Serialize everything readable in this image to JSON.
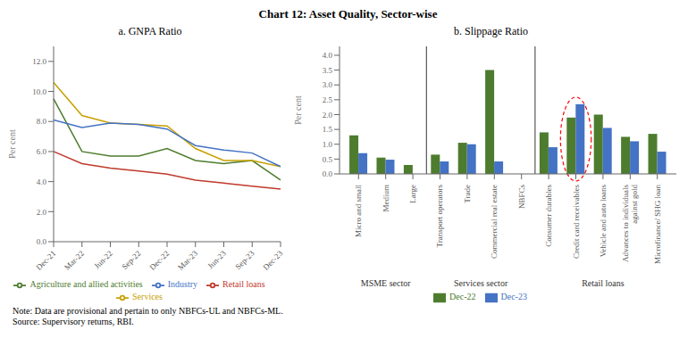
{
  "title": "Chart 12: Asset Quality, Sector-wise",
  "annotations": [
    "Note: Data are provisional and pertain to only NBFCs-UL and NBFCs-ML.",
    "Source: Supervisory returns, RBI."
  ],
  "chart_data": [
    {
      "type": "line",
      "title": "a. GNPA Ratio",
      "categories": [
        "Dec-21",
        "Mar-22",
        "Jun-22",
        "Sep-22",
        "Dec-22",
        "Mar-23",
        "Jun-23",
        "Sep-23",
        "Dec-23"
      ],
      "series": [
        {
          "name": "Agriculture and allied activities",
          "color": "#4d7c2e",
          "values": [
            9.5,
            6.0,
            5.7,
            5.7,
            6.2,
            5.4,
            5.2,
            5.4,
            4.1
          ]
        },
        {
          "name": "Services",
          "color": "#c8a000",
          "values": [
            10.6,
            8.4,
            7.9,
            7.8,
            7.7,
            6.2,
            5.4,
            5.4,
            5.0
          ]
        },
        {
          "name": "Industry",
          "color": "#4472c4",
          "values": [
            8.1,
            7.6,
            7.9,
            7.8,
            7.5,
            6.4,
            6.1,
            5.9,
            5.0
          ]
        },
        {
          "name": "Retail loans",
          "color": "#c0392b",
          "values": [
            6.0,
            5.2,
            4.9,
            4.7,
            4.5,
            4.1,
            3.9,
            3.7,
            3.5
          ]
        }
      ],
      "ylabel": "Per cent",
      "ylim": [
        0,
        13
      ],
      "yticks": [
        {
          "value": 0,
          "label": "0.0"
        },
        {
          "value": 2,
          "label": "2.0"
        },
        {
          "value": 4,
          "label": "4.0"
        },
        {
          "value": 6,
          "label": "6.0"
        },
        {
          "value": 8,
          "label": "8.0"
        },
        {
          "value": 10,
          "label": "10.0"
        },
        {
          "value": 12,
          "label": "12.0"
        }
      ],
      "grid": false,
      "legend": "bottom"
    },
    {
      "type": "bar",
      "title": "b. Slippage Ratio",
      "categories": [
        "Micro and small",
        "Medium",
        "Large",
        "Transport operators",
        "Trade",
        "Commercial real estate",
        "NBFCs",
        "Consumer durables",
        "Credit card receivables",
        "Vehicle and auto loans",
        "Advances to individuals\nagainst gold",
        "Microfinance/ SHG loan"
      ],
      "series": [
        {
          "name": "Dec-22",
          "color": "#4d7c2e",
          "values": [
            1.3,
            0.55,
            0.3,
            0.65,
            1.05,
            3.5,
            0.0,
            1.4,
            1.9,
            2.0,
            1.25,
            1.35
          ]
        },
        {
          "name": "Dec-23",
          "color": "#4472c4",
          "values": [
            0.7,
            0.48,
            0.0,
            0.42,
            1.0,
            0.42,
            0.0,
            0.9,
            2.35,
            1.55,
            1.1,
            0.75
          ]
        }
      ],
      "ylabel": "Per cent",
      "ylim": [
        0,
        4.3
      ],
      "yticks": [
        {
          "value": 0,
          "label": "0.0"
        },
        0.5,
        {
          "value": 1,
          "label": "1.0"
        },
        1.5,
        {
          "value": 2,
          "label": "2.0"
        },
        2.5,
        {
          "value": 3,
          "label": "3.0"
        },
        3.5,
        {
          "value": 4,
          "label": "4.0"
        }
      ],
      "grid": false,
      "legend": "bottom",
      "groups": [
        {
          "label": "MSME sector",
          "categories": [
            "Micro and small",
            "Medium",
            "Large"
          ]
        },
        {
          "label": "Services sector",
          "categories": [
            "Transport operators",
            "Trade",
            "Commercial real estate",
            "NBFCs"
          ]
        },
        {
          "label": "Retail loans",
          "categories": [
            "Consumer durables",
            "Credit card receivables",
            "Vehicle and auto loans",
            "Advances to individuals\nagainst gold",
            "Microfinance/ SHG loan"
          ]
        }
      ],
      "highlight": {
        "category": "Credit card receivables",
        "color": "red"
      }
    }
  ]
}
